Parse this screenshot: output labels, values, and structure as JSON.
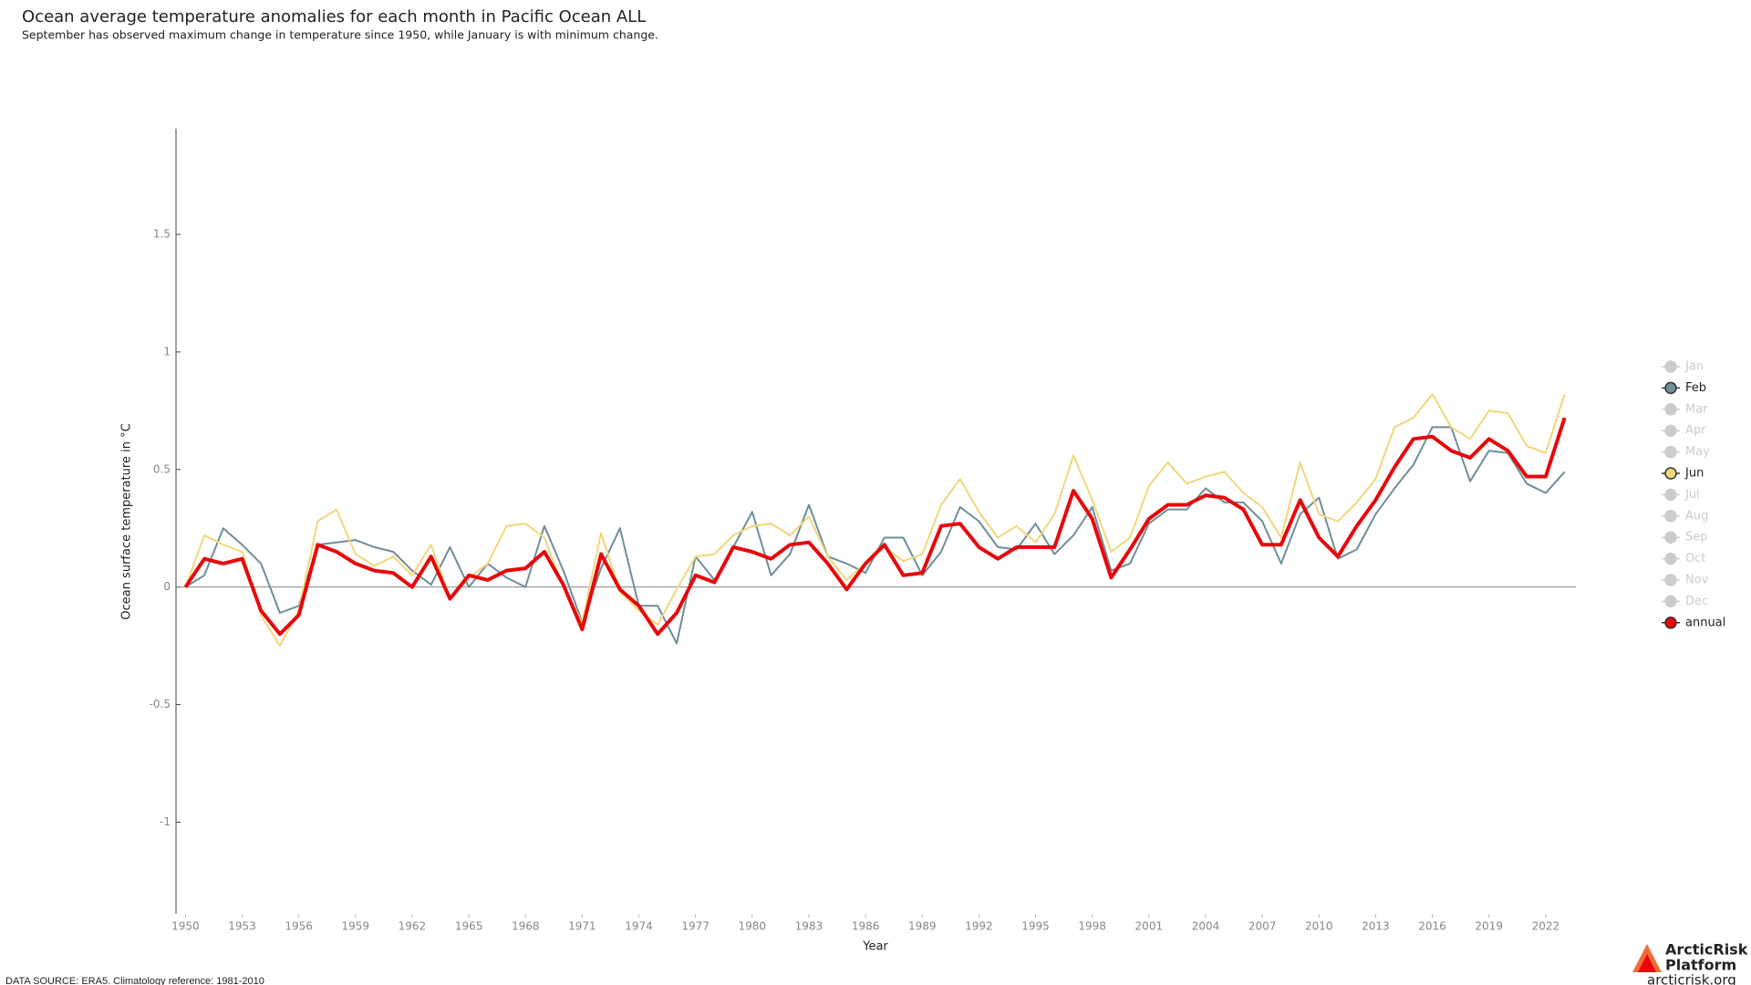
{
  "chart_data": {
    "type": "line",
    "title": "Ocean average temperature anomalies for each month in Pacific Ocean ALL",
    "subtitle": "September has observed maximum change in temperature since 1950, while January is with minimum change.",
    "xlabel": "Year",
    "ylabel": "Ocean surface temperature in °C",
    "x": [
      1950,
      1951,
      1952,
      1953,
      1954,
      1955,
      1956,
      1957,
      1958,
      1959,
      1960,
      1961,
      1962,
      1963,
      1964,
      1965,
      1966,
      1967,
      1968,
      1969,
      1970,
      1971,
      1972,
      1973,
      1974,
      1975,
      1976,
      1977,
      1978,
      1979,
      1980,
      1981,
      1982,
      1983,
      1984,
      1985,
      1986,
      1987,
      1988,
      1989,
      1990,
      1991,
      1992,
      1993,
      1994,
      1995,
      1996,
      1997,
      1998,
      1999,
      2000,
      2001,
      2002,
      2003,
      2004,
      2005,
      2006,
      2007,
      2008,
      2009,
      2010,
      2011,
      2012,
      2013,
      2014,
      2015,
      2016,
      2017,
      2018,
      2019,
      2020,
      2021,
      2022,
      2023
    ],
    "xlim": [
      1949.5,
      2023.6
    ],
    "xticks": [
      1950,
      1953,
      1956,
      1959,
      1962,
      1965,
      1968,
      1971,
      1974,
      1977,
      1980,
      1983,
      1986,
      1989,
      1992,
      1995,
      1998,
      2001,
      2004,
      2007,
      2010,
      2013,
      2016,
      2019,
      2022
    ],
    "ylim": [
      -1.39,
      1.95
    ],
    "yticks": [
      -1,
      -0.5,
      0,
      0.5,
      1,
      1.5
    ],
    "inactive_color": "#cccccc",
    "series": [
      {
        "name": "Jan",
        "active": false
      },
      {
        "name": "Feb",
        "active": true,
        "color": "#6e8e99",
        "width": 2,
        "values": [
          0,
          0.05,
          0.25,
          0.18,
          0.1,
          -0.11,
          -0.08,
          0.18,
          0.19,
          0.2,
          0.17,
          0.15,
          0.07,
          0.01,
          0.17,
          0.0,
          0.1,
          0.04,
          0.0,
          0.26,
          0.07,
          -0.15,
          0.08,
          0.25,
          -0.08,
          -0.08,
          -0.24,
          0.13,
          0.03,
          0.17,
          0.32,
          0.05,
          0.14,
          0.35,
          0.13,
          0.1,
          0.06,
          0.21,
          0.21,
          0.05,
          0.15,
          0.34,
          0.28,
          0.17,
          0.16,
          0.27,
          0.14,
          0.22,
          0.34,
          0.07,
          0.1,
          0.27,
          0.33,
          0.33,
          0.42,
          0.36,
          0.36,
          0.28,
          0.1,
          0.31,
          0.38,
          0.12,
          0.16,
          0.31,
          0.42,
          0.52,
          0.68,
          0.68,
          0.45,
          0.58,
          0.57,
          0.44,
          0.4,
          0.49
        ]
      },
      {
        "name": "Mar",
        "active": false
      },
      {
        "name": "Apr",
        "active": false
      },
      {
        "name": "May",
        "active": false
      },
      {
        "name": "Jun",
        "active": true,
        "color": "#f0d77a",
        "width": 2,
        "values": [
          0,
          0.22,
          0.18,
          0.15,
          -0.12,
          -0.25,
          -0.1,
          0.28,
          0.33,
          0.14,
          0.09,
          0.13,
          0.05,
          0.18,
          -0.05,
          0.04,
          0.1,
          0.26,
          0.27,
          0.21,
          0.0,
          -0.15,
          0.23,
          -0.02,
          -0.1,
          -0.16,
          -0.01,
          0.13,
          0.14,
          0.22,
          0.26,
          0.27,
          0.22,
          0.3,
          0.13,
          0.03,
          0.1,
          0.17,
          0.11,
          0.14,
          0.35,
          0.46,
          0.32,
          0.21,
          0.26,
          0.19,
          0.31,
          0.56,
          0.37,
          0.15,
          0.21,
          0.43,
          0.53,
          0.44,
          0.47,
          0.49,
          0.4,
          0.34,
          0.21,
          0.53,
          0.31,
          0.28,
          0.36,
          0.46,
          0.68,
          0.72,
          0.82,
          0.68,
          0.63,
          0.75,
          0.74,
          0.6,
          0.57,
          0.82
        ]
      },
      {
        "name": "Jul",
        "active": false
      },
      {
        "name": "Aug",
        "active": false
      },
      {
        "name": "Sep",
        "active": false
      },
      {
        "name": "Oct",
        "active": false
      },
      {
        "name": "Nov",
        "active": false
      },
      {
        "name": "Dec",
        "active": false
      },
      {
        "name": "annual",
        "active": true,
        "color": "#e8070b",
        "width": 4,
        "values": [
          0,
          0.12,
          0.1,
          0.12,
          -0.1,
          -0.2,
          -0.12,
          0.18,
          0.15,
          0.1,
          0.07,
          0.06,
          0.0,
          0.13,
          -0.05,
          0.05,
          0.03,
          0.07,
          0.08,
          0.15,
          0.01,
          -0.18,
          0.14,
          -0.01,
          -0.08,
          -0.2,
          -0.11,
          0.05,
          0.02,
          0.17,
          0.15,
          0.12,
          0.18,
          0.19,
          0.1,
          -0.01,
          0.1,
          0.18,
          0.05,
          0.06,
          0.26,
          0.27,
          0.17,
          0.12,
          0.17,
          0.17,
          0.17,
          0.41,
          0.29,
          0.04,
          0.16,
          0.29,
          0.35,
          0.35,
          0.39,
          0.38,
          0.33,
          0.18,
          0.18,
          0.37,
          0.21,
          0.13,
          0.26,
          0.37,
          0.51,
          0.63,
          0.64,
          0.58,
          0.55,
          0.63,
          0.58,
          0.47,
          0.47,
          0.72
        ]
      }
    ]
  },
  "footer": "DATA SOURCE: ERA5. Climatology reference: 1981-2010",
  "logo": {
    "name_line1": "ArcticRisk",
    "name_line2": "Platform",
    "url": "arcticrisk.org"
  }
}
